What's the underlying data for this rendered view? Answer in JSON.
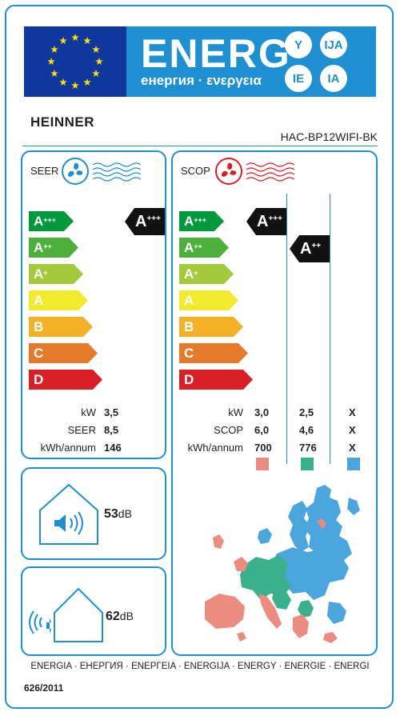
{
  "header": {
    "energy_word": "ENERG",
    "energy_sub": "енергия · ενεργεια",
    "suffixes": [
      "Y",
      "IJA",
      "IE",
      "IA"
    ],
    "brand": "HEINNER",
    "model": "HAC-BP12WIFI-BK"
  },
  "scale_labels": [
    "A+++",
    "A++",
    "A+",
    "A",
    "B",
    "C",
    "D"
  ],
  "scale_colors": [
    "#009a3c",
    "#4cb03a",
    "#a5c93c",
    "#f2ea2c",
    "#f4b125",
    "#e57a2a",
    "#d81f26"
  ],
  "seer_panel": {
    "title": "SEER",
    "class_main": "A",
    "class_sup": "+++",
    "rows": [
      {
        "label": "kW",
        "value": "3,5"
      },
      {
        "label": "SEER",
        "value": "8,5"
      },
      {
        "label": "kWh/annum",
        "value": "146"
      }
    ]
  },
  "scop_panel": {
    "title": "SCOP",
    "classes": [
      {
        "main": "A",
        "sup": "+++"
      },
      {
        "main": "A",
        "sup": "++"
      }
    ],
    "row_labels": [
      "kW",
      "SCOP",
      "kWh/annum"
    ],
    "columns": [
      {
        "values": [
          "3,0",
          "6,0",
          "700"
        ],
        "color": "#ec8c80"
      },
      {
        "values": [
          "2,5",
          "4,6",
          "776"
        ],
        "color": "#3ab08c"
      },
      {
        "values": [
          "X",
          "X",
          "X"
        ],
        "color": "#4aa6dc"
      }
    ]
  },
  "noise": {
    "indoor": {
      "value": "53",
      "unit": "dB"
    },
    "outdoor": {
      "value": "62",
      "unit": "dB"
    }
  },
  "footer": {
    "languages": "ENERGIA · ЕНЕРГИЯ · ΕΝΕΡΓΕΙΑ · ENERGIJA · ENERGY · ENERGIE · ENERGI",
    "regulation": "626/2011"
  }
}
